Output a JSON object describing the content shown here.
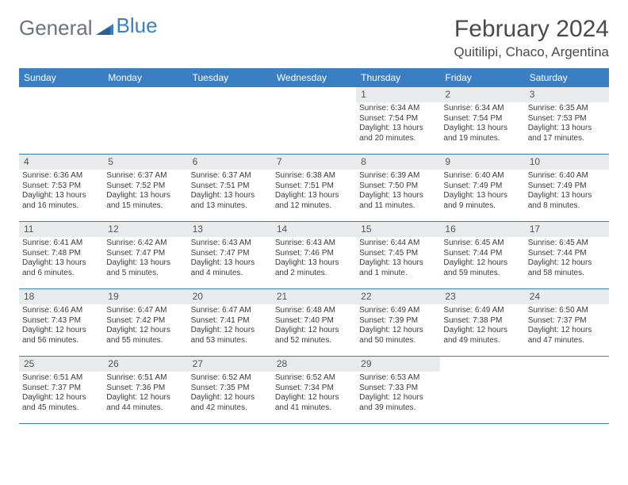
{
  "logo": {
    "text1": "General",
    "text2": "Blue"
  },
  "title": "February 2024",
  "location": "Quitilipi, Chaco, Argentina",
  "colors": {
    "header_bg": "#3a7fc4",
    "header_text": "#ffffff",
    "daynum_bg": "#e9eaeb",
    "border": "#3a7fc4",
    "body_text": "#3a3a3a",
    "title_text": "#4a4a4a",
    "logo_gray": "#6b7280",
    "logo_blue": "#3a7fc4"
  },
  "weekdays": [
    "Sunday",
    "Monday",
    "Tuesday",
    "Wednesday",
    "Thursday",
    "Friday",
    "Saturday"
  ],
  "weeks": [
    [
      null,
      null,
      null,
      null,
      {
        "n": "1",
        "sunrise": "6:34 AM",
        "sunset": "7:54 PM",
        "daylight": "13 hours and 20 minutes."
      },
      {
        "n": "2",
        "sunrise": "6:34 AM",
        "sunset": "7:54 PM",
        "daylight": "13 hours and 19 minutes."
      },
      {
        "n": "3",
        "sunrise": "6:35 AM",
        "sunset": "7:53 PM",
        "daylight": "13 hours and 17 minutes."
      }
    ],
    [
      {
        "n": "4",
        "sunrise": "6:36 AM",
        "sunset": "7:53 PM",
        "daylight": "13 hours and 16 minutes."
      },
      {
        "n": "5",
        "sunrise": "6:37 AM",
        "sunset": "7:52 PM",
        "daylight": "13 hours and 15 minutes."
      },
      {
        "n": "6",
        "sunrise": "6:37 AM",
        "sunset": "7:51 PM",
        "daylight": "13 hours and 13 minutes."
      },
      {
        "n": "7",
        "sunrise": "6:38 AM",
        "sunset": "7:51 PM",
        "daylight": "13 hours and 12 minutes."
      },
      {
        "n": "8",
        "sunrise": "6:39 AM",
        "sunset": "7:50 PM",
        "daylight": "13 hours and 11 minutes."
      },
      {
        "n": "9",
        "sunrise": "6:40 AM",
        "sunset": "7:49 PM",
        "daylight": "13 hours and 9 minutes."
      },
      {
        "n": "10",
        "sunrise": "6:40 AM",
        "sunset": "7:49 PM",
        "daylight": "13 hours and 8 minutes."
      }
    ],
    [
      {
        "n": "11",
        "sunrise": "6:41 AM",
        "sunset": "7:48 PM",
        "daylight": "13 hours and 6 minutes."
      },
      {
        "n": "12",
        "sunrise": "6:42 AM",
        "sunset": "7:47 PM",
        "daylight": "13 hours and 5 minutes."
      },
      {
        "n": "13",
        "sunrise": "6:43 AM",
        "sunset": "7:47 PM",
        "daylight": "13 hours and 4 minutes."
      },
      {
        "n": "14",
        "sunrise": "6:43 AM",
        "sunset": "7:46 PM",
        "daylight": "13 hours and 2 minutes."
      },
      {
        "n": "15",
        "sunrise": "6:44 AM",
        "sunset": "7:45 PM",
        "daylight": "13 hours and 1 minute."
      },
      {
        "n": "16",
        "sunrise": "6:45 AM",
        "sunset": "7:44 PM",
        "daylight": "12 hours and 59 minutes."
      },
      {
        "n": "17",
        "sunrise": "6:45 AM",
        "sunset": "7:44 PM",
        "daylight": "12 hours and 58 minutes."
      }
    ],
    [
      {
        "n": "18",
        "sunrise": "6:46 AM",
        "sunset": "7:43 PM",
        "daylight": "12 hours and 56 minutes."
      },
      {
        "n": "19",
        "sunrise": "6:47 AM",
        "sunset": "7:42 PM",
        "daylight": "12 hours and 55 minutes."
      },
      {
        "n": "20",
        "sunrise": "6:47 AM",
        "sunset": "7:41 PM",
        "daylight": "12 hours and 53 minutes."
      },
      {
        "n": "21",
        "sunrise": "6:48 AM",
        "sunset": "7:40 PM",
        "daylight": "12 hours and 52 minutes."
      },
      {
        "n": "22",
        "sunrise": "6:49 AM",
        "sunset": "7:39 PM",
        "daylight": "12 hours and 50 minutes."
      },
      {
        "n": "23",
        "sunrise": "6:49 AM",
        "sunset": "7:38 PM",
        "daylight": "12 hours and 49 minutes."
      },
      {
        "n": "24",
        "sunrise": "6:50 AM",
        "sunset": "7:37 PM",
        "daylight": "12 hours and 47 minutes."
      }
    ],
    [
      {
        "n": "25",
        "sunrise": "6:51 AM",
        "sunset": "7:37 PM",
        "daylight": "12 hours and 45 minutes."
      },
      {
        "n": "26",
        "sunrise": "6:51 AM",
        "sunset": "7:36 PM",
        "daylight": "12 hours and 44 minutes."
      },
      {
        "n": "27",
        "sunrise": "6:52 AM",
        "sunset": "7:35 PM",
        "daylight": "12 hours and 42 minutes."
      },
      {
        "n": "28",
        "sunrise": "6:52 AM",
        "sunset": "7:34 PM",
        "daylight": "12 hours and 41 minutes."
      },
      {
        "n": "29",
        "sunrise": "6:53 AM",
        "sunset": "7:33 PM",
        "daylight": "12 hours and 39 minutes."
      },
      null,
      null
    ]
  ],
  "labels": {
    "sunrise": "Sunrise:",
    "sunset": "Sunset:",
    "daylight": "Daylight:"
  }
}
